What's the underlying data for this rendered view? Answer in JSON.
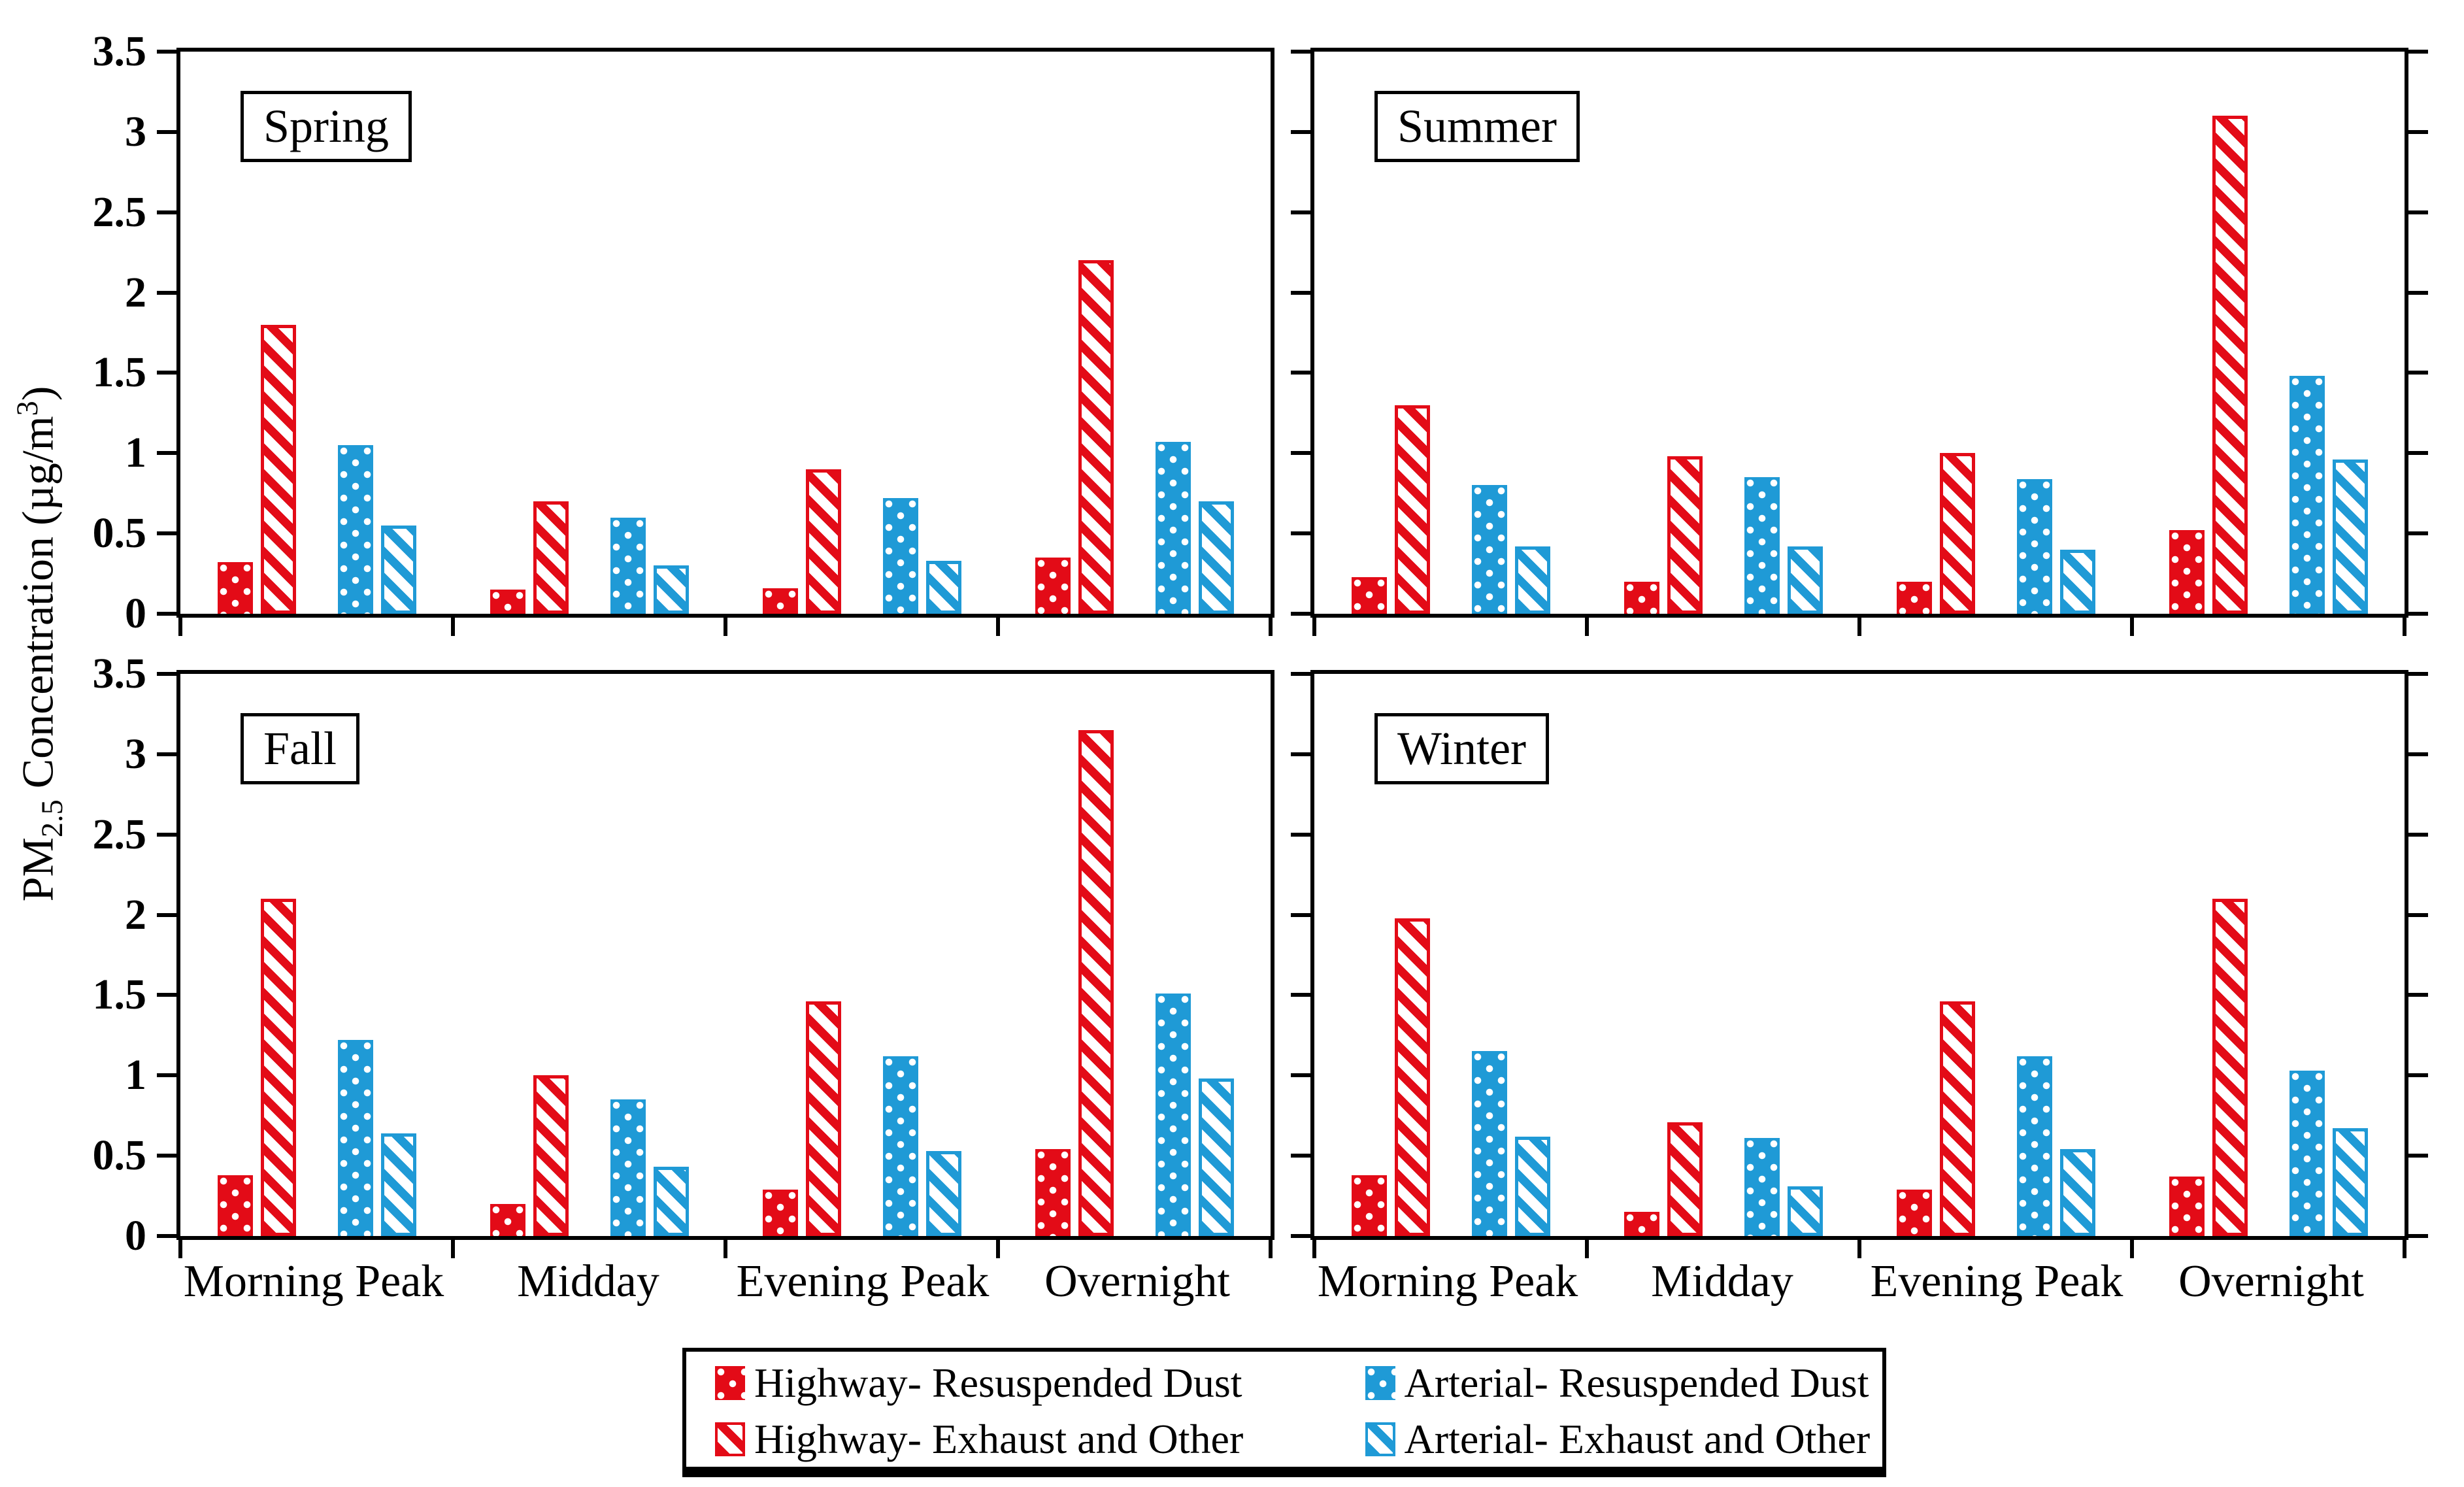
{
  "figure": {
    "background": "#ffffff",
    "y_axis": {
      "label_prefix": "PM",
      "label_sub": "2.5",
      "label_mid": " Concentration (µg/m",
      "label_sup": "3",
      "label_suffix": ")"
    },
    "colors": {
      "highway": "#e30b17",
      "arterial": "#1f9ad6",
      "axis": "#000000"
    }
  },
  "chart_data": {
    "type": "bar",
    "title": "",
    "xlabel": "",
    "ylabel": "PM2.5 Concentration (µg/m³)",
    "ylim": [
      0,
      3.5
    ],
    "yticks": [
      0,
      0.5,
      1,
      1.5,
      2,
      2.5,
      3,
      3.5
    ],
    "ytick_labels": [
      "0",
      "0.5",
      "1",
      "1.5",
      "2",
      "2.5",
      "3",
      "3.5"
    ],
    "grid": false,
    "legend_position": "bottom",
    "panel_layout": "2x2",
    "categories": [
      "Morning Peak",
      "Midday",
      "Evening Peak",
      "Overnight"
    ],
    "series_order": [
      "Highway- Resuspended Dust",
      "Highway- Exhaust and Other",
      "Arterial- Resuspended Dust",
      "Arterial- Exhaust and Other"
    ],
    "series_styles": {
      "Highway- Resuspended Dust": {
        "pattern": "dots",
        "color": "highway"
      },
      "Highway- Exhaust and Other": {
        "pattern": "hatch",
        "color": "highway"
      },
      "Arterial- Resuspended Dust": {
        "pattern": "dots",
        "color": "arterial"
      },
      "Arterial- Exhaust and Other": {
        "pattern": "hatch",
        "color": "arterial"
      }
    },
    "panels": [
      {
        "title": "Spring",
        "series": [
          {
            "name": "Highway- Resuspended Dust",
            "values": [
              0.32,
              0.15,
              0.16,
              0.35
            ]
          },
          {
            "name": "Highway- Exhaust and Other",
            "values": [
              1.8,
              0.7,
              0.9,
              2.2
            ]
          },
          {
            "name": "Arterial- Resuspended Dust",
            "values": [
              1.05,
              0.6,
              0.72,
              1.07
            ]
          },
          {
            "name": "Arterial- Exhaust and Other",
            "values": [
              0.55,
              0.3,
              0.33,
              0.7
            ]
          }
        ]
      },
      {
        "title": "Summer",
        "series": [
          {
            "name": "Highway- Resuspended Dust",
            "values": [
              0.23,
              0.2,
              0.2,
              0.52
            ]
          },
          {
            "name": "Highway- Exhaust and Other",
            "values": [
              1.3,
              0.98,
              1.0,
              3.1
            ]
          },
          {
            "name": "Arterial- Resuspended Dust",
            "values": [
              0.8,
              0.85,
              0.84,
              1.48
            ]
          },
          {
            "name": "Arterial- Exhaust and Other",
            "values": [
              0.42,
              0.42,
              0.4,
              0.96
            ]
          }
        ]
      },
      {
        "title": "Fall",
        "series": [
          {
            "name": "Highway- Resuspended Dust",
            "values": [
              0.38,
              0.2,
              0.29,
              0.54
            ]
          },
          {
            "name": "Highway- Exhaust and Other",
            "values": [
              2.1,
              1.0,
              1.46,
              3.15
            ]
          },
          {
            "name": "Arterial- Resuspended Dust",
            "values": [
              1.22,
              0.85,
              1.12,
              1.51
            ]
          },
          {
            "name": "Arterial- Exhaust and Other",
            "values": [
              0.64,
              0.43,
              0.53,
              0.98
            ]
          }
        ]
      },
      {
        "title": "Winter",
        "series": [
          {
            "name": "Highway- Resuspended Dust",
            "values": [
              0.38,
              0.15,
              0.29,
              0.37
            ]
          },
          {
            "name": "Highway- Exhaust and Other",
            "values": [
              1.98,
              0.71,
              1.46,
              2.1
            ]
          },
          {
            "name": "Arterial- Resuspended Dust",
            "values": [
              1.15,
              0.61,
              1.12,
              1.03
            ]
          },
          {
            "name": "Arterial- Exhaust and Other",
            "values": [
              0.62,
              0.31,
              0.54,
              0.67
            ]
          }
        ]
      }
    ],
    "legend": [
      {
        "label": "Highway- Resuspended Dust",
        "pattern": "dots",
        "color": "highway"
      },
      {
        "label": "Arterial- Resuspended Dust",
        "pattern": "dots",
        "color": "arterial"
      },
      {
        "label": "Highway- Exhaust and Other",
        "pattern": "hatch",
        "color": "highway"
      },
      {
        "label": "Arterial- Exhaust and Other",
        "pattern": "hatch",
        "color": "arterial"
      }
    ]
  }
}
